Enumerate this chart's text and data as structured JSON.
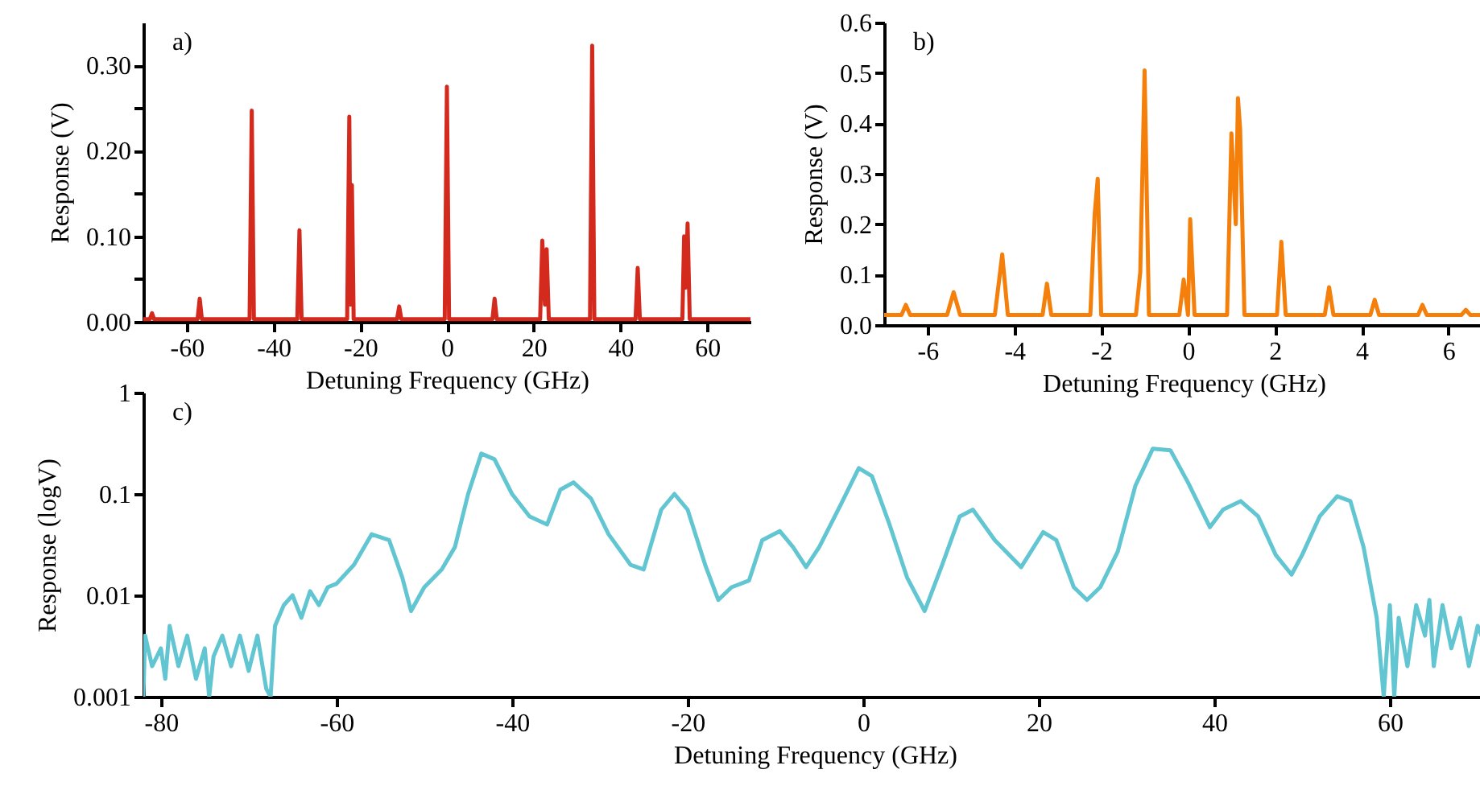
{
  "chart_data": [
    {
      "type": "line",
      "xlabel": "Detuning Frequency (GHz)",
      "ylabel": "Response (V)",
      "annotations": [
        "a)"
      ],
      "color": "#d42a1e",
      "x": [
        -70,
        -68.5,
        -68,
        -67.5,
        -57.5,
        -57,
        -56.5,
        -45.5,
        -45,
        -44.5,
        -34.5,
        -34,
        -33.5,
        -23,
        -22.5,
        -22.2,
        -21.9,
        -21.5,
        -11.5,
        -11,
        -10.5,
        -0.5,
        0,
        0.5,
        10.5,
        11,
        11.5,
        21.5,
        22,
        22.6,
        23,
        23.5,
        33,
        33.5,
        34,
        43.5,
        44,
        44.5,
        54.3,
        54.7,
        55.1,
        55.5,
        56,
        70
      ],
      "values": [
        0.003,
        0.003,
        0.01,
        0.003,
        0.003,
        0.027,
        0.003,
        0.003,
        0.247,
        0.003,
        0.003,
        0.107,
        0.003,
        0.003,
        0.24,
        0.02,
        0.16,
        0.003,
        0.003,
        0.018,
        0.003,
        0.003,
        0.275,
        0.003,
        0.003,
        0.027,
        0.003,
        0.003,
        0.095,
        0.02,
        0.085,
        0.003,
        0.003,
        0.323,
        0.003,
        0.003,
        0.063,
        0.003,
        0.003,
        0.1,
        0.04,
        0.115,
        0.003,
        0.003
      ],
      "xlim": [
        -70,
        70
      ],
      "xticks": [
        -60,
        -40,
        -20,
        0,
        20,
        40,
        60
      ],
      "ylim": [
        0,
        0.35
      ],
      "yticks": [
        {
          "value": 0,
          "label": "0.00"
        },
        {
          "value": 0.05,
          "label": null
        },
        {
          "value": 0.1,
          "label": "0.10"
        },
        {
          "value": 0.15,
          "label": null
        },
        {
          "value": 0.2,
          "label": "0.20"
        },
        {
          "value": 0.25,
          "label": null
        },
        {
          "value": 0.3,
          "label": "0.30"
        }
      ]
    },
    {
      "type": "line",
      "xlabel": "Detuning Frequency (GHz)",
      "ylabel": "Response (V)",
      "annotations": [
        "b)"
      ],
      "color": "#f57f0b",
      "x": [
        -7,
        -6.6,
        -6.5,
        -6.4,
        -5.55,
        -5.4,
        -5.25,
        -4.45,
        -4.35,
        -4.28,
        -4.15,
        -3.35,
        -3.25,
        -3.15,
        -2.25,
        -2.15,
        -2.08,
        -2,
        -1.2,
        -1.1,
        -1,
        -0.9,
        -0.2,
        -0.1,
        0,
        0.05,
        0.15,
        0.9,
        1,
        1.1,
        1.15,
        1.2,
        1.3,
        2.05,
        2.15,
        2.25,
        3.15,
        3.25,
        3.35,
        4.2,
        4.3,
        4.4,
        5.3,
        5.4,
        5.5,
        6.3,
        6.4,
        6.5,
        6.8
      ],
      "values": [
        0.02,
        0.02,
        0.04,
        0.02,
        0.02,
        0.065,
        0.02,
        0.02,
        0.09,
        0.14,
        0.02,
        0.02,
        0.082,
        0.02,
        0.02,
        0.22,
        0.29,
        0.02,
        0.02,
        0.105,
        0.505,
        0.02,
        0.02,
        0.09,
        0.02,
        0.21,
        0.02,
        0.02,
        0.38,
        0.2,
        0.45,
        0.39,
        0.02,
        0.02,
        0.165,
        0.02,
        0.02,
        0.075,
        0.02,
        0.02,
        0.05,
        0.02,
        0.02,
        0.04,
        0.02,
        0.02,
        0.03,
        0.02,
        0.02
      ],
      "xlim": [
        -7,
        6.8
      ],
      "xticks": [
        -6,
        -4,
        -2,
        0,
        2,
        4,
        6
      ],
      "ylim": [
        0,
        0.6
      ],
      "yticks": [
        {
          "value": 0,
          "label": "0.0"
        },
        0.1,
        0.2,
        0.3,
        0.4,
        0.5,
        0.6
      ]
    },
    {
      "type": "line",
      "xlabel": "Detuning Frequency (GHz)",
      "ylabel": "Response (logV)",
      "annotations": [
        "c)"
      ],
      "color": "#62c6d2",
      "log": true,
      "x": [
        -82,
        -81.8,
        -81,
        -80,
        -79.5,
        -79,
        -78,
        -77,
        -76,
        -75,
        -74.5,
        -74,
        -73,
        -72,
        -71,
        -70,
        -69,
        -68,
        -67.5,
        -67,
        -66,
        -65,
        -64,
        -63,
        -62,
        -61,
        -60,
        -58,
        -56,
        -54,
        -52.5,
        -51.5,
        -50,
        -48,
        -46.5,
        -45,
        -43.5,
        -42,
        -40,
        -38,
        -36,
        -34.5,
        -33,
        -31,
        -29,
        -26.5,
        -25,
        -23,
        -21.5,
        -20,
        -18,
        -16.5,
        -15,
        -13,
        -11.5,
        -9.5,
        -8,
        -6.5,
        -5,
        -2.5,
        -0.5,
        1,
        3,
        5,
        7,
        9,
        11,
        12.5,
        15,
        18,
        20.5,
        22,
        24,
        25.5,
        27,
        29,
        31,
        33,
        35,
        37,
        39.5,
        41,
        43,
        45,
        47,
        48.8,
        50,
        52,
        54,
        55.5,
        57,
        58.5,
        59.3,
        60,
        60.5,
        61,
        62,
        63,
        64,
        64.5,
        65,
        66,
        67,
        68,
        69,
        70,
        71
      ],
      "values": [
        0.001,
        0.004,
        0.002,
        0.003,
        0.0015,
        0.005,
        0.002,
        0.004,
        0.0015,
        0.003,
        0.001,
        0.0025,
        0.004,
        0.002,
        0.004,
        0.0018,
        0.004,
        0.0012,
        0.001,
        0.005,
        0.008,
        0.01,
        0.006,
        0.011,
        0.008,
        0.012,
        0.013,
        0.02,
        0.04,
        0.035,
        0.015,
        0.007,
        0.012,
        0.018,
        0.03,
        0.1,
        0.25,
        0.22,
        0.1,
        0.06,
        0.05,
        0.11,
        0.13,
        0.09,
        0.04,
        0.02,
        0.018,
        0.07,
        0.1,
        0.07,
        0.02,
        0.009,
        0.012,
        0.014,
        0.035,
        0.043,
        0.03,
        0.019,
        0.03,
        0.08,
        0.18,
        0.15,
        0.05,
        0.015,
        0.007,
        0.02,
        0.06,
        0.07,
        0.035,
        0.019,
        0.042,
        0.035,
        0.012,
        0.009,
        0.012,
        0.027,
        0.12,
        0.28,
        0.27,
        0.13,
        0.047,
        0.07,
        0.085,
        0.06,
        0.025,
        0.016,
        0.025,
        0.06,
        0.095,
        0.085,
        0.03,
        0.006,
        0.001,
        0.008,
        0.001,
        0.006,
        0.002,
        0.008,
        0.004,
        0.009,
        0.002,
        0.008,
        0.003,
        0.006,
        0.002,
        0.005,
        0.003
      ],
      "xlim": [
        -82,
        71
      ],
      "xticks": [
        -80,
        -60,
        -40,
        -20,
        0,
        20,
        40,
        60
      ],
      "ylim": [
        0.001,
        1
      ],
      "yticks": [
        0.001,
        0.01,
        0.1,
        1
      ]
    }
  ]
}
